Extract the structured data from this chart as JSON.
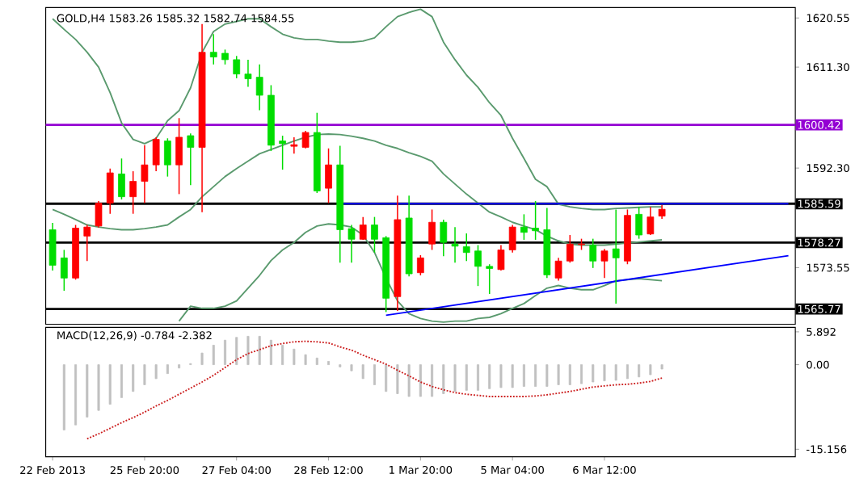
{
  "chart_data": [
    {
      "type": "candlestick",
      "title": "GOLD,H4  1583.26 1585.32 1582.74 1584.55",
      "categories": [
        null,
        null,
        null,
        null,
        null,
        null,
        null,
        null,
        null,
        null,
        null,
        null,
        null,
        null,
        null,
        null,
        null,
        null,
        null,
        null,
        null,
        null,
        null,
        null,
        null,
        null,
        null,
        null,
        null,
        null,
        null,
        null,
        null,
        null,
        null,
        null,
        null,
        null,
        null,
        null,
        null,
        null,
        null,
        null,
        null,
        null,
        null,
        null,
        null,
        null,
        null,
        null,
        null,
        null,
        null,
        null,
        null,
        null,
        null,
        null,
        null,
        null,
        null,
        null,
        null
      ],
      "ohlc": [
        [
          1580.7,
          1582.0,
          1573.0,
          1574.0
        ],
        [
          1575.4,
          1576.9,
          1569.2,
          1571.6
        ],
        [
          1571.6,
          1581.6,
          1571.3,
          1581.0
        ],
        [
          1579.5,
          1581.6,
          1574.8,
          1581.2
        ],
        [
          1581.4,
          1586.1,
          1581.1,
          1585.7
        ],
        [
          1585.7,
          1592.2,
          1583.7,
          1591.4
        ],
        [
          1591.2,
          1594.1,
          1586.4,
          1586.9
        ],
        [
          1586.9,
          1591.7,
          1583.7,
          1589.8
        ],
        [
          1589.8,
          1596.6,
          1585.7,
          1592.9
        ],
        [
          1592.9,
          1598.1,
          1591.7,
          1597.7
        ],
        [
          1597.4,
          1597.9,
          1590.7,
          1592.9
        ],
        [
          1592.9,
          1601.7,
          1587.4,
          1598.1
        ],
        [
          1598.4,
          1598.8,
          1589.1,
          1596.2
        ],
        [
          1596.2,
          1619.4,
          1584.0,
          1614.1
        ],
        [
          1614.1,
          1617.5,
          1611.8,
          1613.2
        ],
        [
          1613.9,
          1614.6,
          1611.8,
          1612.7
        ],
        [
          1612.7,
          1613.4,
          1609.2,
          1610.0
        ],
        [
          1610.0,
          1612.7,
          1607.6,
          1609.1
        ],
        [
          1609.4,
          1611.8,
          1603.2,
          1606.0
        ],
        [
          1606.0,
          1607.9,
          1595.5,
          1596.6
        ],
        [
          1597.4,
          1598.4,
          1592.0,
          1596.9
        ],
        [
          1596.4,
          1598.1,
          1595.0,
          1596.7
        ],
        [
          1596.2,
          1599.3,
          1596.0,
          1599.0
        ],
        [
          1599.0,
          1602.7,
          1587.6,
          1588.0
        ],
        [
          1588.5,
          1596.0,
          1585.7,
          1592.9
        ],
        [
          1592.9,
          1596.5,
          1574.5,
          1580.7
        ],
        [
          1580.9,
          1581.6,
          1574.5,
          1578.9
        ],
        [
          1578.9,
          1583.1,
          1578.8,
          1581.6
        ],
        [
          1581.6,
          1583.1,
          1576.4,
          1578.9
        ],
        [
          1579.2,
          1579.5,
          1565.2,
          1567.8
        ],
        [
          1568.1,
          1587.1,
          1565.4,
          1582.6
        ],
        [
          1582.9,
          1587.1,
          1571.9,
          1572.4
        ],
        [
          1572.6,
          1575.9,
          1572.1,
          1575.4
        ],
        [
          1578.0,
          1584.5,
          1576.9,
          1582.1
        ],
        [
          1582.1,
          1582.6,
          1575.7,
          1578.3
        ],
        [
          1578.0,
          1581.2,
          1574.5,
          1577.6
        ],
        [
          1577.5,
          1580.0,
          1574.8,
          1576.4
        ],
        [
          1576.7,
          1577.8,
          1570.1,
          1573.8
        ],
        [
          1573.8,
          1574.2,
          1568.6,
          1573.4
        ],
        [
          1573.2,
          1577.8,
          1573.0,
          1576.9
        ],
        [
          1576.9,
          1581.6,
          1576.4,
          1581.2
        ],
        [
          1581.2,
          1583.6,
          1578.8,
          1580.2
        ],
        [
          1581.0,
          1586.1,
          1578.8,
          1580.5
        ],
        [
          1580.7,
          1584.8,
          1571.6,
          1572.2
        ],
        [
          1571.6,
          1575.4,
          1571.1,
          1574.8
        ],
        [
          1574.8,
          1579.7,
          1574.5,
          1578.0
        ],
        [
          1577.9,
          1579.0,
          1576.9,
          1578.0
        ],
        [
          1577.8,
          1579.0,
          1573.5,
          1574.8
        ],
        [
          1574.8,
          1577.1,
          1571.6,
          1576.7
        ],
        [
          1577.1,
          1584.5,
          1566.8,
          1575.4
        ],
        [
          1574.8,
          1584.5,
          1574.2,
          1583.4
        ],
        [
          1583.6,
          1585.0,
          1579.0,
          1579.7
        ],
        [
          1579.9,
          1585.0,
          1579.7,
          1583.1
        ],
        [
          1583.26,
          1585.32,
          1582.74,
          1584.55
        ],
        null,
        null,
        null,
        null,
        null,
        null,
        null,
        null,
        null,
        null,
        null
      ],
      "colors": [
        "#00dd00",
        "#00dd00",
        "#ff0000",
        "#ff0000",
        "#ff0000",
        "#ff0000",
        "#00dd00",
        "#ff0000",
        "#ff0000",
        "#ff0000",
        "#00dd00",
        "#ff0000",
        "#00dd00",
        "#ff0000",
        "#00dd00",
        "#00dd00",
        "#00dd00",
        "#00dd00",
        "#00dd00",
        "#00dd00",
        "#00dd00",
        "#ff0000",
        "#ff0000",
        "#00dd00",
        "#ff0000",
        "#00dd00",
        "#00dd00",
        "#ff0000",
        "#00dd00",
        "#00dd00",
        "#ff0000",
        "#00dd00",
        "#ff0000",
        "#ff0000",
        "#00dd00",
        "#00dd00",
        "#00dd00",
        "#00dd00",
        "#00dd00",
        "#ff0000",
        "#ff0000",
        "#00dd00",
        "#00dd00",
        "#00dd00",
        "#ff0000",
        "#ff0000",
        "#ff0000",
        "#00dd00",
        "#ff0000",
        "#00dd00",
        "#ff0000",
        "#00dd00",
        "#ff0000",
        "#ff0000",
        null,
        null,
        null,
        null,
        null,
        null,
        null,
        null,
        null,
        null,
        null
      ],
      "series": [
        {
          "type": "line",
          "color": "#5a9a6e",
          "values": [
            1620.4,
            1618.4,
            1616.5,
            1614.1,
            1611.3,
            1606.5,
            1600.8,
            1597.7,
            1596.9,
            1597.9,
            1601.2,
            1603.1,
            1607.4,
            1614.1,
            1618.0,
            1619.4,
            1619.9,
            1620.4,
            1620.4,
            1618.9,
            1617.5,
            1616.8,
            1616.5,
            1616.5,
            1616.2,
            1616.0,
            1616.0,
            1616.2,
            1616.8,
            1618.9,
            1620.8,
            1621.6,
            1622.2,
            1620.8,
            1616.0,
            1612.7,
            1609.8,
            1607.5,
            1604.6,
            1602.2,
            1597.9,
            1594.1,
            1590.2,
            1588.8,
            1585.5,
            1585.0,
            1584.7,
            1584.5,
            1584.5,
            1584.7,
            1584.8,
            1584.9,
            1585.0,
            1585.0,
            null,
            null,
            null,
            null,
            null,
            null,
            null,
            null,
            null,
            null,
            null
          ]
        },
        {
          "type": "line",
          "color": "#5a9a6e",
          "values": [
            1584.5,
            1583.6,
            1582.6,
            1581.6,
            1581.2,
            1580.9,
            1580.7,
            1580.7,
            1580.9,
            1581.2,
            1581.6,
            1583.1,
            1584.5,
            1586.9,
            1588.8,
            1590.7,
            1592.2,
            1593.6,
            1595.0,
            1595.8,
            1596.6,
            1597.4,
            1598.1,
            1598.6,
            1598.7,
            1598.6,
            1598.3,
            1597.9,
            1597.4,
            1596.6,
            1596.0,
            1595.2,
            1594.5,
            1593.6,
            1591.2,
            1589.3,
            1587.4,
            1585.7,
            1584.0,
            1583.1,
            1582.1,
            1581.4,
            1580.7,
            1579.5,
            1578.6,
            1578.0,
            1577.8,
            1577.8,
            1577.8,
            1578.0,
            1578.2,
            1578.4,
            1578.6,
            1578.8,
            null,
            null,
            null,
            null,
            null,
            null,
            null,
            null,
            null,
            null,
            null
          ]
        },
        {
          "type": "line",
          "color": "#5a9a6e",
          "values": [
            null,
            null,
            null,
            null,
            null,
            null,
            null,
            null,
            null,
            null,
            null,
            1563.5,
            1566.3,
            1565.9,
            1565.9,
            1566.3,
            1567.3,
            1569.7,
            1572.1,
            1574.9,
            1576.9,
            1578.3,
            1580.2,
            1581.4,
            1581.8,
            1581.6,
            1581.2,
            1579.7,
            1576.4,
            1571.6,
            1567.3,
            1564.9,
            1564.0,
            1563.5,
            1563.3,
            1563.5,
            1563.5,
            1564.0,
            1564.2,
            1564.9,
            1565.9,
            1566.8,
            1568.3,
            1569.7,
            1570.2,
            1569.7,
            1569.4,
            1569.4,
            1570.2,
            1571.1,
            1571.3,
            1571.5,
            1571.3,
            1571.1,
            null,
            null,
            null,
            null,
            null,
            null,
            null,
            null,
            null,
            null,
            null
          ]
        },
        {
          "type": "line",
          "color": "#0000ff",
          "values": [
            null,
            null,
            null,
            null,
            null,
            null,
            null,
            null,
            null,
            null,
            null,
            null,
            null,
            null,
            null,
            null,
            null,
            null,
            null,
            null,
            null,
            null,
            null,
            null,
            null,
            1585.59,
            null,
            null,
            null,
            null,
            null,
            null,
            null,
            null,
            null,
            null,
            null,
            null,
            null,
            null,
            null,
            null,
            null,
            null,
            null,
            null,
            null,
            null,
            null,
            null,
            null,
            null,
            null,
            null,
            null,
            null,
            null,
            null,
            null,
            null,
            null,
            null,
            null,
            null,
            1585.59
          ]
        },
        {
          "type": "line",
          "color": "#0000ff",
          "values": [
            null,
            null,
            null,
            null,
            null,
            null,
            null,
            null,
            null,
            null,
            null,
            null,
            null,
            null,
            null,
            null,
            null,
            null,
            null,
            null,
            null,
            null,
            null,
            null,
            null,
            null,
            null,
            null,
            null,
            1564.6,
            null,
            null,
            null,
            null,
            null,
            null,
            null,
            null,
            null,
            null,
            null,
            null,
            null,
            null,
            null,
            null,
            null,
            null,
            null,
            null,
            null,
            null,
            null,
            null,
            null,
            null,
            null,
            null,
            null,
            null,
            null,
            null,
            null,
            null,
            1575.8
          ]
        }
      ],
      "ref_lines": [
        {
          "axis": "y",
          "value": 1600.42,
          "label": "1600.42",
          "color": "#9400d3"
        },
        {
          "axis": "y",
          "value": 1585.59,
          "label": "1585.59",
          "color": "#000000"
        },
        {
          "axis": "y",
          "value": 1578.27,
          "label": "1578.27",
          "color": "#000000"
        },
        {
          "axis": "y",
          "value": 1565.77,
          "label": "1565.77",
          "color": "#000000"
        }
      ],
      "ylim": [
        1562.9,
        1622.5
      ],
      "yticks": [
        1620.55,
        {
          "value": 1611.3,
          "label": "1611.30"
        },
        {
          "value": 1592.3,
          "label": "1592.30"
        },
        1573.55
      ],
      "tick_labels": "y"
    },
    {
      "type": "bar",
      "title": "MACD(12,26,9) -0.784 -2.382",
      "categories": [
        "22 Feb 2013",
        null,
        null,
        null,
        null,
        null,
        null,
        null,
        "25 Feb 20:00",
        null,
        null,
        null,
        null,
        null,
        null,
        null,
        "27 Feb 04:00",
        null,
        null,
        null,
        null,
        null,
        null,
        null,
        "28 Feb 12:00",
        null,
        null,
        null,
        null,
        null,
        null,
        null,
        "1 Mar 20:00",
        null,
        null,
        null,
        null,
        null,
        null,
        null,
        "5 Mar 04:00",
        null,
        null,
        null,
        null,
        null,
        null,
        null,
        "6 Mar 12:00",
        null,
        null,
        null,
        null,
        null,
        null,
        null,
        null,
        null,
        null,
        null,
        null,
        null,
        null,
        null,
        null
      ],
      "series": [
        {
          "color": "#c0c0c0",
          "values": [
            null,
            -11.7,
            -10.8,
            -9.4,
            -8.2,
            -7.1,
            -5.9,
            -4.8,
            -3.6,
            -2.5,
            -1.6,
            -0.6,
            0.2,
            2.1,
            3.5,
            4.4,
            4.9,
            5.1,
            5.1,
            4.4,
            3.5,
            2.8,
            1.8,
            1.2,
            0.6,
            -0.4,
            -1.1,
            -2.5,
            -3.6,
            -4.8,
            -5.2,
            -5.7,
            -5.7,
            -5.7,
            -5.2,
            -4.8,
            -4.6,
            -4.6,
            -4.3,
            -4.1,
            -4.1,
            -3.9,
            -3.9,
            -3.9,
            -3.6,
            -3.6,
            -3.4,
            -3.1,
            -2.9,
            -2.8,
            -2.5,
            -2.2,
            -1.8,
            -0.784,
            null,
            null,
            null,
            null,
            null,
            null,
            null,
            null,
            null,
            null,
            null
          ]
        },
        {
          "type": "line",
          "color": "#cc2020",
          "line_style": "dotted",
          "values": [
            null,
            null,
            null,
            -13.3,
            -12.4,
            -11.4,
            -10.4,
            -9.5,
            -8.5,
            -7.4,
            -6.4,
            -5.3,
            -4.2,
            -3.1,
            -1.9,
            -0.5,
            0.9,
            2.0,
            2.7,
            3.4,
            3.8,
            4.1,
            4.2,
            4.1,
            3.9,
            3.2,
            2.6,
            1.7,
            0.9,
            0.1,
            -1.0,
            -2.0,
            -3.1,
            -3.9,
            -4.5,
            -5.0,
            -5.3,
            -5.5,
            -5.7,
            -5.7,
            -5.7,
            -5.7,
            -5.6,
            -5.4,
            -5.1,
            -4.8,
            -4.4,
            -4.0,
            -3.8,
            -3.6,
            -3.5,
            -3.3,
            -3.0,
            -2.382,
            null,
            null,
            null,
            null,
            null,
            null,
            null,
            null,
            null,
            null,
            null
          ]
        }
      ],
      "ylim": [
        -16.5,
        6.7
      ],
      "yticks": [
        5.892,
        {
          "value": 0,
          "label": "0.00"
        },
        -15.156
      ]
    }
  ]
}
